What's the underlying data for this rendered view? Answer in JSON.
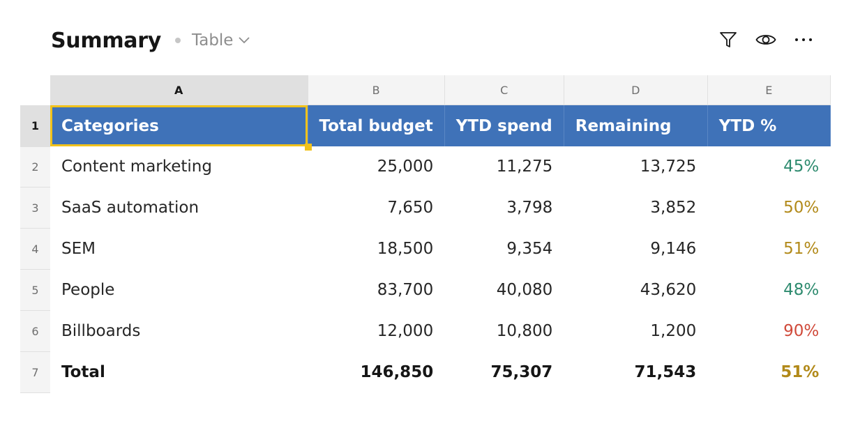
{
  "header": {
    "title": "Summary",
    "view_label": "Table"
  },
  "icons": {
    "filter": "filter-icon",
    "view": "eye-icon",
    "more": "overflow-menu-icon"
  },
  "columns": [
    "A",
    "B",
    "C",
    "D",
    "E"
  ],
  "row_numbers": [
    "1",
    "2",
    "3",
    "4",
    "5",
    "6",
    "7"
  ],
  "table_header": [
    "Categories",
    "Total budget",
    "YTD spend",
    "Remaining",
    "YTD %"
  ],
  "rows": [
    {
      "category": "Content marketing",
      "budget": "25,000",
      "spend": "11,275",
      "remaining": "13,725",
      "pct": "45%"
    },
    {
      "category": "SaaS automation",
      "budget": "7,650",
      "spend": "3,798",
      "remaining": "3,852",
      "pct": "50%"
    },
    {
      "category": "SEM",
      "budget": "18,500",
      "spend": "9,354",
      "remaining": "9,146",
      "pct": "51%"
    },
    {
      "category": "People",
      "budget": "83,700",
      "spend": "40,080",
      "remaining": "43,620",
      "pct": "48%"
    },
    {
      "category": "Billboards",
      "budget": "12,000",
      "spend": "10,800",
      "remaining": "1,200",
      "pct": "90%"
    },
    {
      "category": "Total",
      "budget": "146,850",
      "spend": "75,307",
      "remaining": "71,543",
      "pct": "51%"
    }
  ],
  "colors": {
    "header_fill": "#3f72b8",
    "selection": "#f1c21b",
    "pct_green": "#2e8b6f",
    "pct_yellow": "#b28a1a",
    "pct_red": "#d04a3a"
  }
}
